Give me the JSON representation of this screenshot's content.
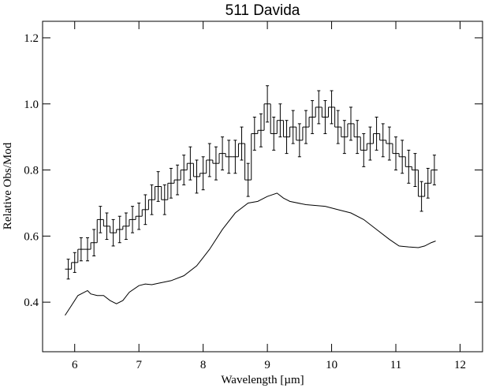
{
  "chart_data": {
    "type": "step_errorbar",
    "title": "511 Davida",
    "xlabel": "Wavelength [µm]",
    "ylabel": "Relative Obs/Mod",
    "xlim": [
      5.5,
      12.35
    ],
    "ylim": [
      0.25,
      1.25
    ],
    "xticks": [
      6,
      7,
      8,
      9,
      10,
      11,
      12
    ],
    "yticks": [
      0.4,
      0.6,
      0.8,
      {
        "value": 1.0,
        "label": "1.0"
      },
      1.2
    ],
    "bin_width": 0.1,
    "color": "#000000",
    "series": [
      {
        "x": [
          5.9,
          6.0,
          6.1,
          6.2,
          6.3,
          6.4,
          6.5,
          6.6,
          6.7,
          6.8,
          6.9,
          7.0,
          7.1,
          7.2,
          7.3,
          7.4,
          7.5,
          7.6,
          7.7,
          7.8,
          7.9,
          8.0,
          8.1,
          8.2,
          8.3,
          8.4,
          8.5,
          8.6,
          8.7,
          8.8,
          8.9,
          9.0,
          9.1,
          9.2,
          9.3,
          9.4,
          9.5,
          9.6,
          9.7,
          9.8,
          9.9,
          10.0,
          10.1,
          10.2,
          10.3,
          10.4,
          10.5,
          10.6,
          10.7,
          10.8,
          10.9,
          11.0,
          11.1,
          11.2,
          11.3,
          11.4,
          11.5,
          11.6
        ],
        "values": [
          0.5,
          0.52,
          0.56,
          0.56,
          0.58,
          0.65,
          0.63,
          0.61,
          0.62,
          0.63,
          0.65,
          0.66,
          0.68,
          0.71,
          0.75,
          0.71,
          0.76,
          0.77,
          0.8,
          0.82,
          0.78,
          0.79,
          0.83,
          0.82,
          0.85,
          0.84,
          0.84,
          0.88,
          0.77,
          0.91,
          0.92,
          1.0,
          0.91,
          0.95,
          0.9,
          0.93,
          0.89,
          0.93,
          0.96,
          0.99,
          0.96,
          0.99,
          0.93,
          0.9,
          0.94,
          0.9,
          0.86,
          0.88,
          0.91,
          0.89,
          0.88,
          0.85,
          0.84,
          0.81,
          0.8,
          0.72,
          0.76,
          0.8
        ],
        "errors": [
          0.03,
          0.03,
          0.035,
          0.035,
          0.04,
          0.04,
          0.04,
          0.04,
          0.04,
          0.04,
          0.04,
          0.04,
          0.045,
          0.045,
          0.045,
          0.045,
          0.045,
          0.045,
          0.045,
          0.05,
          0.05,
          0.05,
          0.05,
          0.05,
          0.05,
          0.05,
          0.05,
          0.05,
          0.05,
          0.05,
          0.05,
          0.055,
          0.05,
          0.05,
          0.05,
          0.05,
          0.05,
          0.05,
          0.05,
          0.05,
          0.05,
          0.05,
          0.05,
          0.05,
          0.05,
          0.05,
          0.05,
          0.05,
          0.05,
          0.05,
          0.05,
          0.05,
          0.05,
          0.05,
          0.05,
          0.045,
          0.045,
          0.045
        ]
      },
      {
        "x": [
          5.85,
          5.95,
          6.05,
          6.15,
          6.2,
          6.25,
          6.35,
          6.45,
          6.55,
          6.65,
          6.75,
          6.85,
          7.0,
          7.1,
          7.2,
          7.3,
          7.5,
          7.7,
          7.9,
          8.1,
          8.3,
          8.5,
          8.7,
          8.85,
          9.0,
          9.15,
          9.25,
          9.35,
          9.6,
          9.9,
          10.1,
          10.3,
          10.5,
          10.7,
          10.9,
          11.05,
          11.2,
          11.35,
          11.45,
          11.55,
          11.62
        ],
        "values": [
          0.36,
          0.39,
          0.42,
          0.43,
          0.435,
          0.425,
          0.42,
          0.42,
          0.405,
          0.395,
          0.405,
          0.43,
          0.45,
          0.455,
          0.453,
          0.457,
          0.465,
          0.48,
          0.51,
          0.56,
          0.62,
          0.67,
          0.7,
          0.705,
          0.72,
          0.73,
          0.715,
          0.705,
          0.695,
          0.69,
          0.68,
          0.67,
          0.65,
          0.62,
          0.59,
          0.57,
          0.567,
          0.565,
          0.57,
          0.58,
          0.585
        ]
      }
    ]
  }
}
